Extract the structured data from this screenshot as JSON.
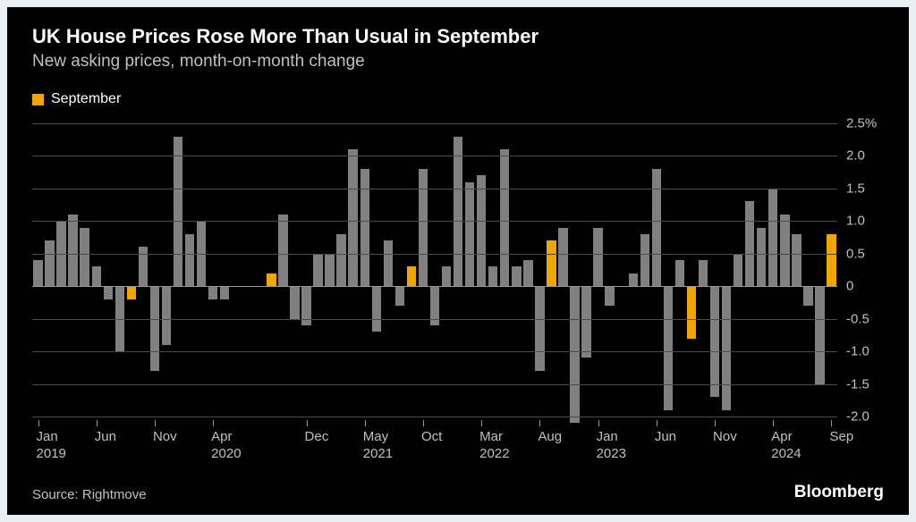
{
  "title": "UK House Prices Rose More Than Usual in September",
  "subtitle": "New asking prices, month-on-month change",
  "legend": {
    "label": "September",
    "swatch_color": "#f0a500"
  },
  "source": "Source: Rightmove",
  "brand": "Bloomberg",
  "chart": {
    "type": "bar",
    "background_color": "#000000",
    "grid_color": "#4a4a4a",
    "zero_line_color": "#9a9a9a",
    "text_color": "#c0c0c0",
    "title_color": "#ffffff",
    "default_bar_color": "#808080",
    "highlight_bar_color": "#f0a500",
    "ylim": [
      -2.0,
      2.5
    ],
    "y_ticks": [
      2.5,
      2.0,
      1.5,
      1.0,
      0.5,
      0,
      -0.5,
      -1.0,
      -1.5,
      -2.0
    ],
    "y_tick_labels": [
      "2.5%",
      "2.0",
      "1.5",
      "1.0",
      "0.5",
      "0",
      "-0.5",
      "-1.0",
      "-1.5",
      "-2.0"
    ],
    "x_ticks": [
      {
        "index": 0,
        "label": "Jan",
        "year": "2019"
      },
      {
        "index": 5,
        "label": "Jun",
        "year": ""
      },
      {
        "index": 10,
        "label": "Nov",
        "year": ""
      },
      {
        "index": 15,
        "label": "Apr",
        "year": "2020"
      },
      {
        "index": 23,
        "label": "Dec",
        "year": ""
      },
      {
        "index": 28,
        "label": "May",
        "year": "2021"
      },
      {
        "index": 33,
        "label": "Oct",
        "year": ""
      },
      {
        "index": 38,
        "label": "Mar",
        "year": "2022"
      },
      {
        "index": 43,
        "label": "Aug",
        "year": ""
      },
      {
        "index": 48,
        "label": "Jan",
        "year": "2023"
      },
      {
        "index": 53,
        "label": "Jun",
        "year": ""
      },
      {
        "index": 58,
        "label": "Nov",
        "year": ""
      },
      {
        "index": 63,
        "label": "Apr",
        "year": "2024"
      },
      {
        "index": 68,
        "label": "Sep",
        "year": ""
      }
    ],
    "bar_count": 69,
    "bar_gap_ratio": 0.2,
    "values": [
      0.4,
      0.7,
      1.0,
      1.1,
      0.9,
      0.3,
      -0.2,
      -1.0,
      -0.2,
      0.6,
      -1.3,
      -0.9,
      2.3,
      0.8,
      1.0,
      -0.2,
      -0.2,
      null,
      null,
      null,
      0.2,
      1.1,
      -0.5,
      -0.6,
      0.5,
      0.5,
      0.8,
      2.1,
      1.8,
      -0.7,
      0.7,
      -0.3,
      0.3,
      1.8,
      -0.6,
      0.3,
      2.3,
      1.6,
      1.7,
      0.3,
      2.1,
      0.3,
      0.4,
      -1.3,
      0.7,
      0.9,
      -2.1,
      -1.1,
      0.9,
      -0.3,
      0.0,
      0.2,
      0.8,
      1.8,
      -1.9,
      0.4,
      -0.8,
      0.4,
      -1.7,
      -1.9,
      0.5,
      1.3,
      0.9,
      1.5,
      1.1,
      0.8,
      -0.3,
      -1.5,
      0.8
    ],
    "highlight_indices": [
      8,
      20,
      32,
      44,
      56,
      68
    ]
  }
}
